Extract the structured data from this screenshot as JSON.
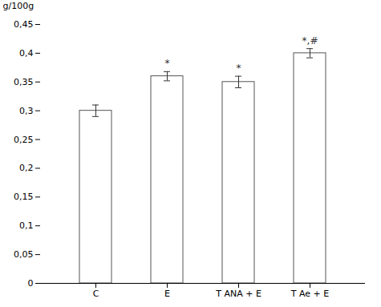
{
  "chart_data": {
    "type": "bar",
    "categories": [
      "C",
      "E",
      "T ANA + E",
      "T Ae + E"
    ],
    "values": [
      0.3,
      0.36,
      0.35,
      0.4
    ],
    "errors": [
      0.01,
      0.008,
      0.01,
      0.008
    ],
    "color": "#ffffff",
    "ylabel": "g/100g",
    "ylim": [
      0,
      0.45
    ],
    "yticks": [
      0,
      {
        "value": 0.05,
        "label": "0,05"
      },
      {
        "value": 0.1,
        "label": "0,1"
      },
      {
        "value": 0.15,
        "label": "0,15"
      },
      {
        "value": 0.2,
        "label": "0,2"
      },
      {
        "value": 0.25,
        "label": "0,25"
      },
      {
        "value": 0.3,
        "label": "0,3"
      },
      {
        "value": 0.35,
        "label": "0,35"
      },
      {
        "value": 0.4,
        "label": "0,4"
      },
      {
        "value": 0.45,
        "label": "0,45"
      }
    ],
    "annotations": [
      {
        "category": "E",
        "text": "*"
      },
      {
        "category": "T ANA + E",
        "text": "*"
      },
      {
        "category": "T Ae + E",
        "text": "*,#"
      }
    ],
    "grid": false
  }
}
